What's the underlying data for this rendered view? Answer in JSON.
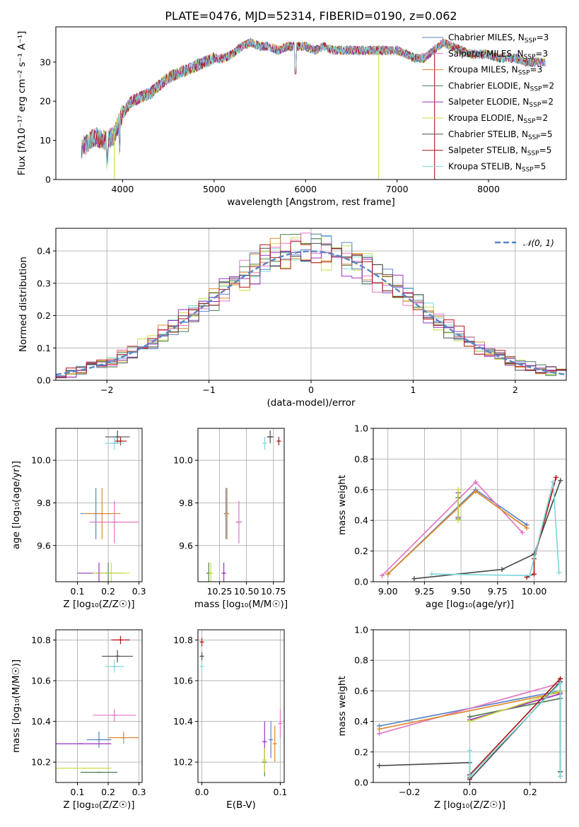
{
  "chart_data": [
    {
      "id": "spectrum",
      "type": "line",
      "title": "PLATE=0476, MJD=52314, FIBERID=0190, z=0.062",
      "xlabel": "wavelength [Angstrom, rest frame]",
      "ylabel": "Flux [fλ10⁻¹⁷ erg cm⁻² s⁻¹ A⁻¹]",
      "xlim": [
        3270,
        8850
      ],
      "ylim": [
        0,
        39
      ],
      "xticks": [
        4000,
        5000,
        6000,
        7000,
        8000
      ],
      "yticks": [
        0,
        10,
        20,
        30
      ],
      "legend_position": "upper-right",
      "data_profile": {
        "x": [
          3550,
          3700,
          3800,
          3900,
          4000,
          4100,
          4200,
          4300,
          4400,
          4500,
          4600,
          4700,
          4800,
          4900,
          5000,
          5100,
          5200,
          5300,
          5400,
          5500,
          5600,
          5700,
          5800,
          5900,
          6000,
          6100,
          6200,
          6300,
          6400,
          6500,
          6600,
          6700,
          6800,
          6900,
          7000,
          7100,
          7200,
          7300,
          7400,
          7500,
          7600,
          7700,
          7800,
          7900,
          8000,
          8100,
          8200,
          8300,
          8400,
          8500,
          8600
        ],
        "y": [
          8,
          11,
          10,
          11,
          17,
          20,
          21,
          22,
          24,
          26,
          27,
          28,
          29,
          30,
          31,
          31,
          32,
          34,
          35,
          34,
          34,
          33,
          34,
          34,
          34,
          33,
          34,
          33,
          33,
          33,
          33,
          33,
          33,
          33,
          33,
          32,
          31,
          31,
          33,
          35,
          34,
          33,
          32,
          32,
          32,
          31,
          31,
          31,
          30,
          30,
          30
        ]
      },
      "series": [
        {
          "name": "Chabrier MILES, N_SSP=3",
          "color": "#5b84c4",
          "label_main": "Chabrier MILES, N",
          "label_sub": "SSP",
          "label_tail": "=3"
        },
        {
          "name": "Salpeter MILES, N_SSP=3",
          "color": "#e377c2",
          "label_main": "Salpeter MILES, N",
          "label_sub": "SSP",
          "label_tail": "=3"
        },
        {
          "name": "Kroupa MILES, N_SSP=3",
          "color": "#e08a2c",
          "label_main": "Kroupa MILES, N",
          "label_sub": "SSP",
          "label_tail": "=3"
        },
        {
          "name": "Chabrier ELODIE, N_SSP=2",
          "color": "#4e7d52",
          "label_main": "Chabrier ELODIE, N",
          "label_sub": "SSP",
          "label_tail": "=2"
        },
        {
          "name": "Salpeter ELODIE, N_SSP=2",
          "color": "#9b30c0",
          "label_main": "Salpeter ELODIE, N",
          "label_sub": "SSP",
          "label_tail": "=2"
        },
        {
          "name": "Kroupa ELODIE, N_SSP=2",
          "color": "#c9de44",
          "label_main": "Kroupa ELODIE, N",
          "label_sub": "SSP",
          "label_tail": "=2"
        },
        {
          "name": "Chabrier STELIB, N_SSP=5",
          "color": "#4d4d4d",
          "label_main": "Chabrier STELIB, N",
          "label_sub": "SSP",
          "label_tail": "=5"
        },
        {
          "name": "Salpeter STELIB, N_SSP=5",
          "color": "#b01818",
          "label_main": "Salpeter STELIB, N",
          "label_sub": "SSP",
          "label_tail": "=5"
        },
        {
          "name": "Kroupa STELIB, N_SSP=5",
          "color": "#7fd8dc",
          "label_main": "Kroupa STELIB, N",
          "label_sub": "SSP",
          "label_tail": "=5"
        }
      ]
    },
    {
      "id": "residuals",
      "type": "line",
      "title": "",
      "xlabel": "(data-model)/error",
      "ylabel": "Normed distribution",
      "xlim": [
        -2.5,
        2.5
      ],
      "ylim": [
        0,
        0.47
      ],
      "xticks": [
        -2,
        -1,
        0,
        1,
        2
      ],
      "yticks": [
        0.0,
        0.1,
        0.2,
        0.3,
        0.4
      ],
      "grid": true,
      "legend_position": "upper-right",
      "reference_curve": {
        "name": "𝒩(0, 1)",
        "mean": 0,
        "sigma": 1,
        "color": "#5b84c4",
        "style": "dashed"
      },
      "bin_width": 0.1
    },
    {
      "id": "age-vs-Z",
      "type": "scatter",
      "xlabel": "Z [log₁₀(Z/Z☉)]",
      "ylabel": "age  [log₁₀(age/yr)]",
      "xlim": [
        0.03,
        0.31
      ],
      "ylim": [
        9.43,
        10.15
      ],
      "xticks": [
        0.1,
        0.2,
        0.3
      ],
      "yticks": [
        9.6,
        9.8,
        10.0
      ],
      "grid": true,
      "points": [
        {
          "series": 0,
          "x": 0.16,
          "y": 9.75,
          "xerr": 0.05,
          "yerr": 0.12
        },
        {
          "series": 1,
          "x": 0.22,
          "y": 9.71,
          "xerr": 0.08,
          "yerr": 0.1
        },
        {
          "series": 2,
          "x": 0.18,
          "y": 9.75,
          "xerr": 0.06,
          "yerr": 0.12
        },
        {
          "series": 3,
          "x": 0.2,
          "y": 9.47,
          "xerr": 0.05,
          "yerr": 0.05
        },
        {
          "series": 4,
          "x": 0.17,
          "y": 9.47,
          "xerr": 0.07,
          "yerr": 0.05
        },
        {
          "series": 5,
          "x": 0.21,
          "y": 9.47,
          "xerr": 0.06,
          "yerr": 0.05
        },
        {
          "series": 6,
          "x": 0.23,
          "y": 10.11,
          "xerr": 0.04,
          "yerr": 0.03
        },
        {
          "series": 7,
          "x": 0.24,
          "y": 10.09,
          "xerr": 0.02,
          "yerr": 0.02
        },
        {
          "series": 8,
          "x": 0.22,
          "y": 10.08,
          "xerr": 0.03,
          "yerr": 0.03
        }
      ]
    },
    {
      "id": "age-vs-mass",
      "type": "scatter",
      "xlabel": "mass [log₁₀(M/M☉)]",
      "ylabel": "",
      "xlim": [
        10.05,
        10.85
      ],
      "ylim": [
        9.43,
        10.15
      ],
      "xticks": [
        10.25,
        10.5,
        10.75
      ],
      "yticks": [
        9.6,
        9.8,
        10.0
      ],
      "grid": true,
      "points": [
        {
          "series": 0,
          "x": 10.31,
          "y": 9.75,
          "xerr": 0.0,
          "yerr": 0.12
        },
        {
          "series": 1,
          "x": 10.43,
          "y": 9.71,
          "xerr": 0.03,
          "yerr": 0.1
        },
        {
          "series": 2,
          "x": 10.32,
          "y": 9.75,
          "xerr": 0.0,
          "yerr": 0.12
        },
        {
          "series": 3,
          "x": 10.15,
          "y": 9.47,
          "xerr": 0.0,
          "yerr": 0.05
        },
        {
          "series": 4,
          "x": 10.29,
          "y": 9.47,
          "xerr": 0.0,
          "yerr": 0.05
        },
        {
          "series": 5,
          "x": 10.17,
          "y": 9.47,
          "xerr": 0.0,
          "yerr": 0.05
        },
        {
          "series": 6,
          "x": 10.72,
          "y": 10.11,
          "xerr": 0.03,
          "yerr": 0.03
        },
        {
          "series": 7,
          "x": 10.8,
          "y": 10.09,
          "xerr": 0.0,
          "yerr": 0.02
        },
        {
          "series": 8,
          "x": 10.67,
          "y": 10.08,
          "xerr": 0.0,
          "yerr": 0.03
        }
      ]
    },
    {
      "id": "weight-vs-age",
      "type": "line",
      "xlabel": "age  [log₁₀(age/yr)]",
      "ylabel": "mass weight",
      "xlim": [
        8.9,
        10.22
      ],
      "ylim": [
        0,
        1
      ],
      "xticks": [
        9.0,
        9.25,
        9.5,
        9.75,
        10.0
      ],
      "yticks": [
        0.0,
        0.2,
        0.4,
        0.6,
        0.8,
        1.0
      ],
      "grid": true,
      "lines": [
        {
          "series": 0,
          "x": [
            9.0,
            9.6,
            9.95
          ],
          "y": [
            0.05,
            0.6,
            0.37
          ]
        },
        {
          "series": 1,
          "x": [
            8.96,
            9.6,
            9.92
          ],
          "y": [
            0.04,
            0.65,
            0.32
          ]
        },
        {
          "series": 2,
          "x": [
            9.0,
            9.6,
            9.95
          ],
          "y": [
            0.05,
            0.59,
            0.35
          ]
        },
        {
          "series": 3,
          "x": [
            9.48,
            9.48
          ],
          "y": [
            0.55,
            0.41
          ]
        },
        {
          "series": 4,
          "x": [
            9.48,
            9.48
          ],
          "y": [
            0.58,
            0.42
          ]
        },
        {
          "series": 5,
          "x": [
            9.48,
            9.48
          ],
          "y": [
            0.6,
            0.4
          ]
        },
        {
          "series": 6,
          "x": [
            9.18,
            9.78,
            10.0,
            10.18
          ],
          "y": [
            0.02,
            0.08,
            0.18,
            0.66
          ]
        },
        {
          "series": 7,
          "x": [
            9.95,
            10.0,
            10.0,
            10.15
          ],
          "y": [
            0.03,
            0.05,
            0.15,
            0.68
          ]
        },
        {
          "series": 8,
          "x": [
            9.3,
            9.97,
            10.13,
            10.17
          ],
          "y": [
            0.05,
            0.04,
            0.65,
            0.06
          ]
        }
      ]
    },
    {
      "id": "mass-vs-Z",
      "type": "scatter",
      "xlabel": "Z [log₁₀(Z/Z☉)]",
      "ylabel": "mass [log₁₀(M/M☉)]",
      "xlim": [
        0.03,
        0.31
      ],
      "ylim": [
        10.1,
        10.85
      ],
      "xticks": [
        0.1,
        0.2,
        0.3
      ],
      "yticks": [
        10.2,
        10.4,
        10.6,
        10.8
      ],
      "grid": true,
      "points": [
        {
          "series": 0,
          "x": 0.17,
          "y": 10.31,
          "xerr": 0.04,
          "yerr": 0.04
        },
        {
          "series": 1,
          "x": 0.22,
          "y": 10.43,
          "xerr": 0.07,
          "yerr": 0.03
        },
        {
          "series": 2,
          "x": 0.25,
          "y": 10.32,
          "xerr": 0.05,
          "yerr": 0.03
        },
        {
          "series": 3,
          "x": 0.17,
          "y": 10.15,
          "xerr": 0.06,
          "yerr": 0.0
        },
        {
          "series": 4,
          "x": 0.11,
          "y": 10.29,
          "xerr": 0.1,
          "yerr": 0.0
        },
        {
          "series": 5,
          "x": 0.12,
          "y": 10.17,
          "xerr": 0.09,
          "yerr": 0.0
        },
        {
          "series": 6,
          "x": 0.23,
          "y": 10.72,
          "xerr": 0.05,
          "yerr": 0.03
        },
        {
          "series": 7,
          "x": 0.24,
          "y": 10.8,
          "xerr": 0.03,
          "yerr": 0.02
        },
        {
          "series": 8,
          "x": 0.22,
          "y": 10.67,
          "xerr": 0.03,
          "yerr": 0.03
        }
      ]
    },
    {
      "id": "mass-vs-ebv",
      "type": "scatter",
      "xlabel": "E(B-V)",
      "ylabel": "",
      "xlim": [
        -0.005,
        0.105
      ],
      "ylim": [
        10.1,
        10.85
      ],
      "xticks": [
        0.0,
        0.1
      ],
      "yticks": [
        10.2,
        10.4,
        10.6,
        10.8
      ],
      "grid": true,
      "points": [
        {
          "series": 0,
          "x": 0.088,
          "y": 10.31,
          "xerr": 0.0,
          "yerr": 0.09
        },
        {
          "series": 1,
          "x": 0.1,
          "y": 10.39,
          "xerr": 0.0,
          "yerr": 0.07
        },
        {
          "series": 2,
          "x": 0.093,
          "y": 10.29,
          "xerr": 0.0,
          "yerr": 0.09
        },
        {
          "series": 3,
          "x": 0.08,
          "y": 10.2,
          "xerr": 0.0,
          "yerr": 0.07
        },
        {
          "series": 4,
          "x": 0.08,
          "y": 10.3,
          "xerr": 0.0,
          "yerr": 0.1
        },
        {
          "series": 5,
          "x": 0.08,
          "y": 10.21,
          "xerr": 0.0,
          "yerr": 0.06
        },
        {
          "series": 6,
          "x": 0.0,
          "y": 10.72,
          "xerr": 0.0,
          "yerr": 0.02
        },
        {
          "series": 7,
          "x": 0.0,
          "y": 10.79,
          "xerr": 0.0,
          "yerr": 0.02
        },
        {
          "series": 8,
          "x": 0.0,
          "y": 10.67,
          "xerr": 0.0,
          "yerr": 0.02
        }
      ]
    },
    {
      "id": "weight-vs-Z",
      "type": "line",
      "xlabel": "Z [log₁₀(Z/Z☉)]",
      "ylabel": "mass weight",
      "xlim": [
        -0.32,
        0.32
      ],
      "ylim": [
        0,
        1
      ],
      "xticks": [
        -0.2,
        0.0,
        0.2
      ],
      "yticks": [
        0.0,
        0.2,
        0.4,
        0.6,
        0.8,
        1.0
      ],
      "grid": true,
      "lines": [
        {
          "series": 0,
          "x": [
            -0.3,
            0.3
          ],
          "y": [
            0.37,
            0.6
          ]
        },
        {
          "series": 1,
          "x": [
            -0.3,
            0.3
          ],
          "y": [
            0.32,
            0.65
          ]
        },
        {
          "series": 2,
          "x": [
            -0.3,
            0.3
          ],
          "y": [
            0.35,
            0.59
          ]
        },
        {
          "series": 3,
          "x": [
            0.0,
            0.3
          ],
          "y": [
            0.43,
            0.55
          ]
        },
        {
          "series": 4,
          "x": [
            0.0,
            0.3
          ],
          "y": [
            0.41,
            0.58
          ]
        },
        {
          "series": 5,
          "x": [
            0.0,
            0.3
          ],
          "y": [
            0.4,
            0.6
          ]
        },
        {
          "series": 6,
          "x": [
            -0.3,
            0.0,
            0.0,
            0.3,
            0.3
          ],
          "y": [
            0.11,
            0.13,
            0.02,
            0.66,
            0.07
          ]
        },
        {
          "series": 7,
          "x": [
            0.0,
            0.0,
            0.3,
            0.3
          ],
          "y": [
            0.03,
            0.05,
            0.68,
            0.04
          ]
        },
        {
          "series": 8,
          "x": [
            0.0,
            0.0,
            0.3,
            0.3
          ],
          "y": [
            0.21,
            0.04,
            0.65,
            0.04
          ]
        }
      ]
    }
  ]
}
